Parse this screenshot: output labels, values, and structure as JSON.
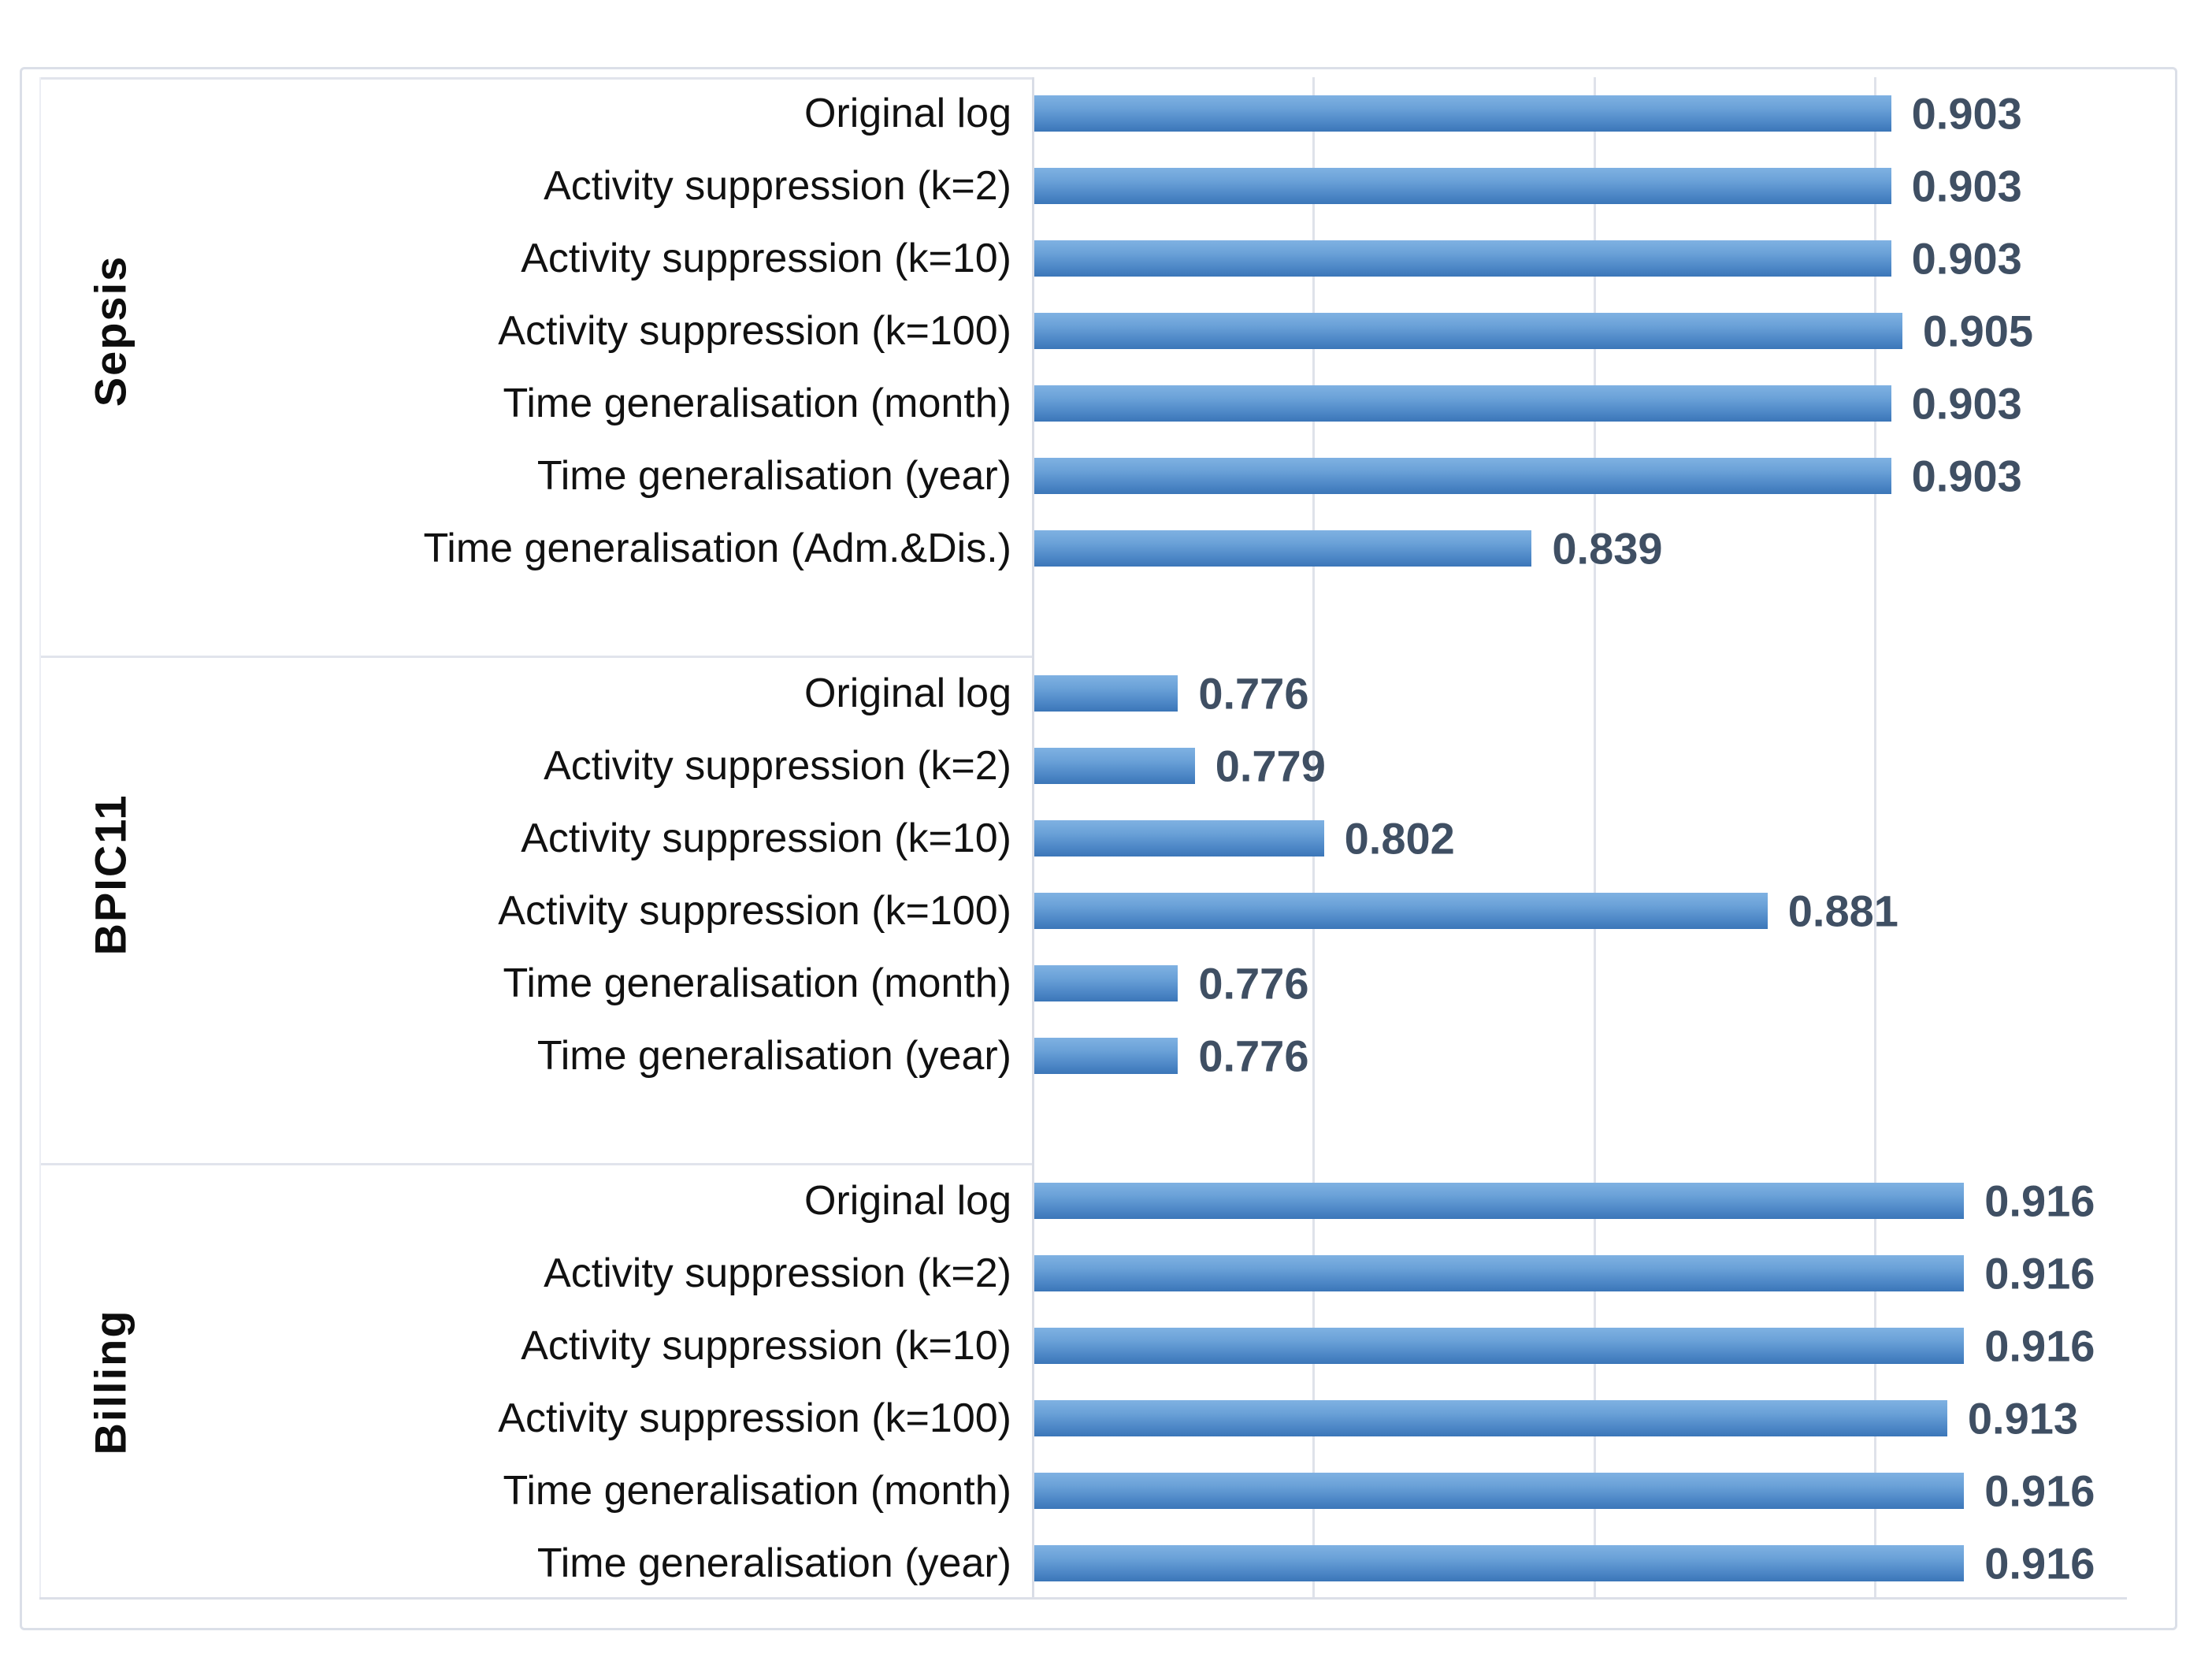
{
  "chart_data": {
    "type": "bar",
    "orientation": "horizontal",
    "title": "",
    "xlabel": "",
    "ylabel": "",
    "legend": "none",
    "grid": "vertical-only",
    "axis": {
      "min": 0.75,
      "max": 0.945,
      "gridline_step": 0.05,
      "gridlines": [
        0.8,
        0.85,
        0.9
      ],
      "tick_labels_visible": false
    },
    "bar_style": {
      "color_top": "#7fb1e2",
      "color_mid": "#4f89c8",
      "color_bottom": "#3b76b8"
    },
    "value_label_color": "#3f4f63",
    "gridline_color": "#dfe2ea",
    "frame_color": "#dbdfe8",
    "groups": [
      {
        "name": "Sepsis",
        "rows": [
          {
            "label": "Original log",
            "value": 0.903,
            "value_label": "0.903"
          },
          {
            "label": "Activity suppression (k=2)",
            "value": 0.903,
            "value_label": "0.903"
          },
          {
            "label": "Activity suppression (k=10)",
            "value": 0.903,
            "value_label": "0.903"
          },
          {
            "label": "Activity suppression (k=100)",
            "value": 0.905,
            "value_label": "0.905"
          },
          {
            "label": "Time generalisation (month)",
            "value": 0.903,
            "value_label": "0.903"
          },
          {
            "label": "Time generalisation (year)",
            "value": 0.903,
            "value_label": "0.903"
          },
          {
            "label": "Time generalisation (Adm.&Dis.)",
            "value": 0.839,
            "value_label": "0.839"
          }
        ]
      },
      {
        "name": "BPIC11",
        "rows": [
          {
            "label": "Original log",
            "value": 0.776,
            "value_label": "0.776"
          },
          {
            "label": "Activity suppression (k=2)",
            "value": 0.779,
            "value_label": "0.779"
          },
          {
            "label": "Activity suppression (k=10)",
            "value": 0.802,
            "value_label": "0.802"
          },
          {
            "label": "Activity suppression (k=100)",
            "value": 0.881,
            "value_label": "0.881"
          },
          {
            "label": "Time generalisation (month)",
            "value": 0.776,
            "value_label": "0.776"
          },
          {
            "label": "Time generalisation (year)",
            "value": 0.776,
            "value_label": "0.776"
          }
        ]
      },
      {
        "name": "Billing",
        "rows": [
          {
            "label": "Original log",
            "value": 0.916,
            "value_label": "0.916"
          },
          {
            "label": "Activity suppression (k=2)",
            "value": 0.916,
            "value_label": "0.916"
          },
          {
            "label": "Activity suppression (k=10)",
            "value": 0.916,
            "value_label": "0.916"
          },
          {
            "label": "Activity suppression (k=100)",
            "value": 0.913,
            "value_label": "0.913"
          },
          {
            "label": "Time generalisation (month)",
            "value": 0.916,
            "value_label": "0.916"
          },
          {
            "label": "Time generalisation (year)",
            "value": 0.916,
            "value_label": "0.916"
          }
        ]
      }
    ]
  }
}
